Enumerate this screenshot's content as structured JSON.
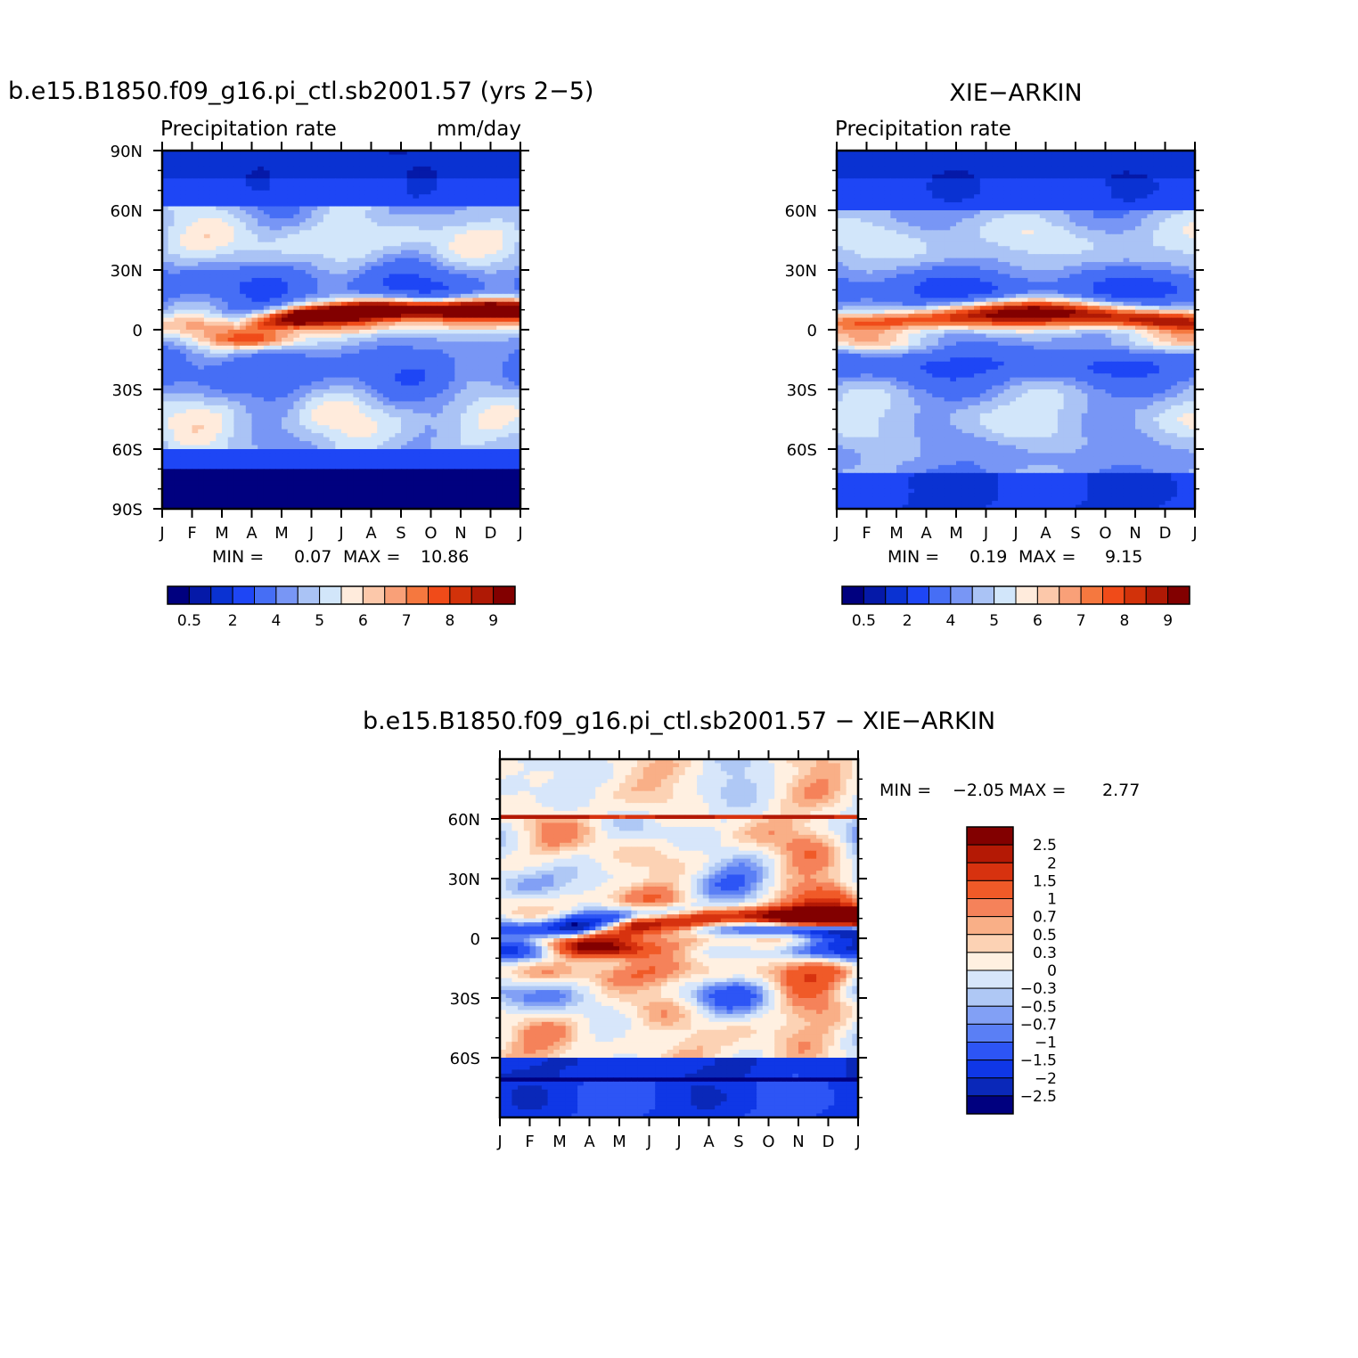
{
  "colors": {
    "abs_levels": [
      "#00007f",
      "#0519a8",
      "#0a32d2",
      "#1e46f5",
      "#466ef5",
      "#7896f5",
      "#aac3f5",
      "#d2e6fa",
      "#ffebdc",
      "#fcc8aa",
      "#f9a078",
      "#f5783f",
      "#f04b19",
      "#d2320a",
      "#af1905",
      "#820000"
    ],
    "diff_levels": [
      "#00007f",
      "#0a28b9",
      "#0f37e6",
      "#2d55f5",
      "#5a7ff5",
      "#82a0f5",
      "#afc8f5",
      "#d7e6fa",
      "#fff0e1",
      "#fcd2b4",
      "#f9af87",
      "#f5825a",
      "#f05a28",
      "#d7320f",
      "#b41905",
      "#820000"
    ]
  },
  "panels": {
    "model": {
      "title": "b.e15.B1850.f09_g16.pi_ctl.sb2001.57 (yrs 2−5)",
      "subtitle_left": "Precipitation rate",
      "subtitle_right": "mm/day",
      "stats": {
        "min_label": "MIN =",
        "min": "0.07",
        "max_label": "MAX =",
        "max": "10.86"
      }
    },
    "obs": {
      "title": "XIE−ARKIN",
      "subtitle_left": "Precipitation rate",
      "subtitle_right": "",
      "stats": {
        "min_label": "MIN =",
        "min": "0.19",
        "max_label": "MAX =",
        "max": "9.15"
      }
    },
    "diff": {
      "title": "b.e15.B1850.f09_g16.pi_ctl.sb2001.57  −  XIE−ARKIN",
      "stats": {
        "min_label": "MIN =",
        "min": "−2.05",
        "max_label": "MAX =",
        "max": "2.77"
      }
    }
  },
  "chart_data": [
    {
      "type": "heatmap",
      "title": "b.e15.B1850.f09_g16.pi_ctl.sb2001.57 (yrs 2−5)",
      "subtitle": "Precipitation rate",
      "units": "mm/day",
      "x": [
        "J",
        "F",
        "M",
        "A",
        "M",
        "J",
        "J",
        "A",
        "S",
        "O",
        "N",
        "D",
        "J"
      ],
      "y_ticks": [
        "90N",
        "60N",
        "30N",
        "0",
        "30S",
        "60S",
        "90S"
      ],
      "ylim": [
        -90,
        90
      ],
      "colorbar_ticks": [
        "0.5",
        "2",
        "4",
        "5",
        "6",
        "7",
        "8",
        "9"
      ],
      "features": {
        "itcz_peak": 10.86,
        "itcz_peak_month": "Aug",
        "itcz_peak_lat": 10,
        "southern_branch_month": "Apr",
        "southern_branch_lat": -5,
        "min": 0.07,
        "max": 10.86
      }
    },
    {
      "type": "heatmap",
      "title": "XIE−ARKIN",
      "subtitle": "Precipitation rate",
      "x": [
        "J",
        "F",
        "M",
        "A",
        "M",
        "J",
        "J",
        "A",
        "S",
        "O",
        "N",
        "D",
        "J"
      ],
      "y_ticks": [
        "60N",
        "30N",
        "0",
        "30S",
        "60S"
      ],
      "ylim": [
        -90,
        90
      ],
      "colorbar_ticks": [
        "0.5",
        "2",
        "4",
        "5",
        "6",
        "7",
        "8",
        "9"
      ],
      "features": {
        "itcz_peak": 9.15,
        "itcz_peak_month": "Aug",
        "itcz_peak_lat": 8,
        "min": 0.19,
        "max": 9.15
      }
    },
    {
      "type": "heatmap",
      "title": "b.e15.B1850.f09_g16.pi_ctl.sb2001.57  −  XIE−ARKIN",
      "x": [
        "J",
        "F",
        "M",
        "A",
        "M",
        "J",
        "J",
        "A",
        "S",
        "O",
        "N",
        "D",
        "J"
      ],
      "y_ticks": [
        "60N",
        "30N",
        "0",
        "30S",
        "60S"
      ],
      "ylim": [
        -90,
        90
      ],
      "colorbar_ticks": [
        "2.5",
        "2",
        "1.5",
        "1",
        "0.7",
        "0.5",
        "0.3",
        "0",
        "−0.3",
        "−0.5",
        "−0.7",
        "−1",
        "−1.5",
        "−2",
        "−2.5"
      ],
      "features": {
        "min": -2.05,
        "max": 2.77
      }
    }
  ]
}
